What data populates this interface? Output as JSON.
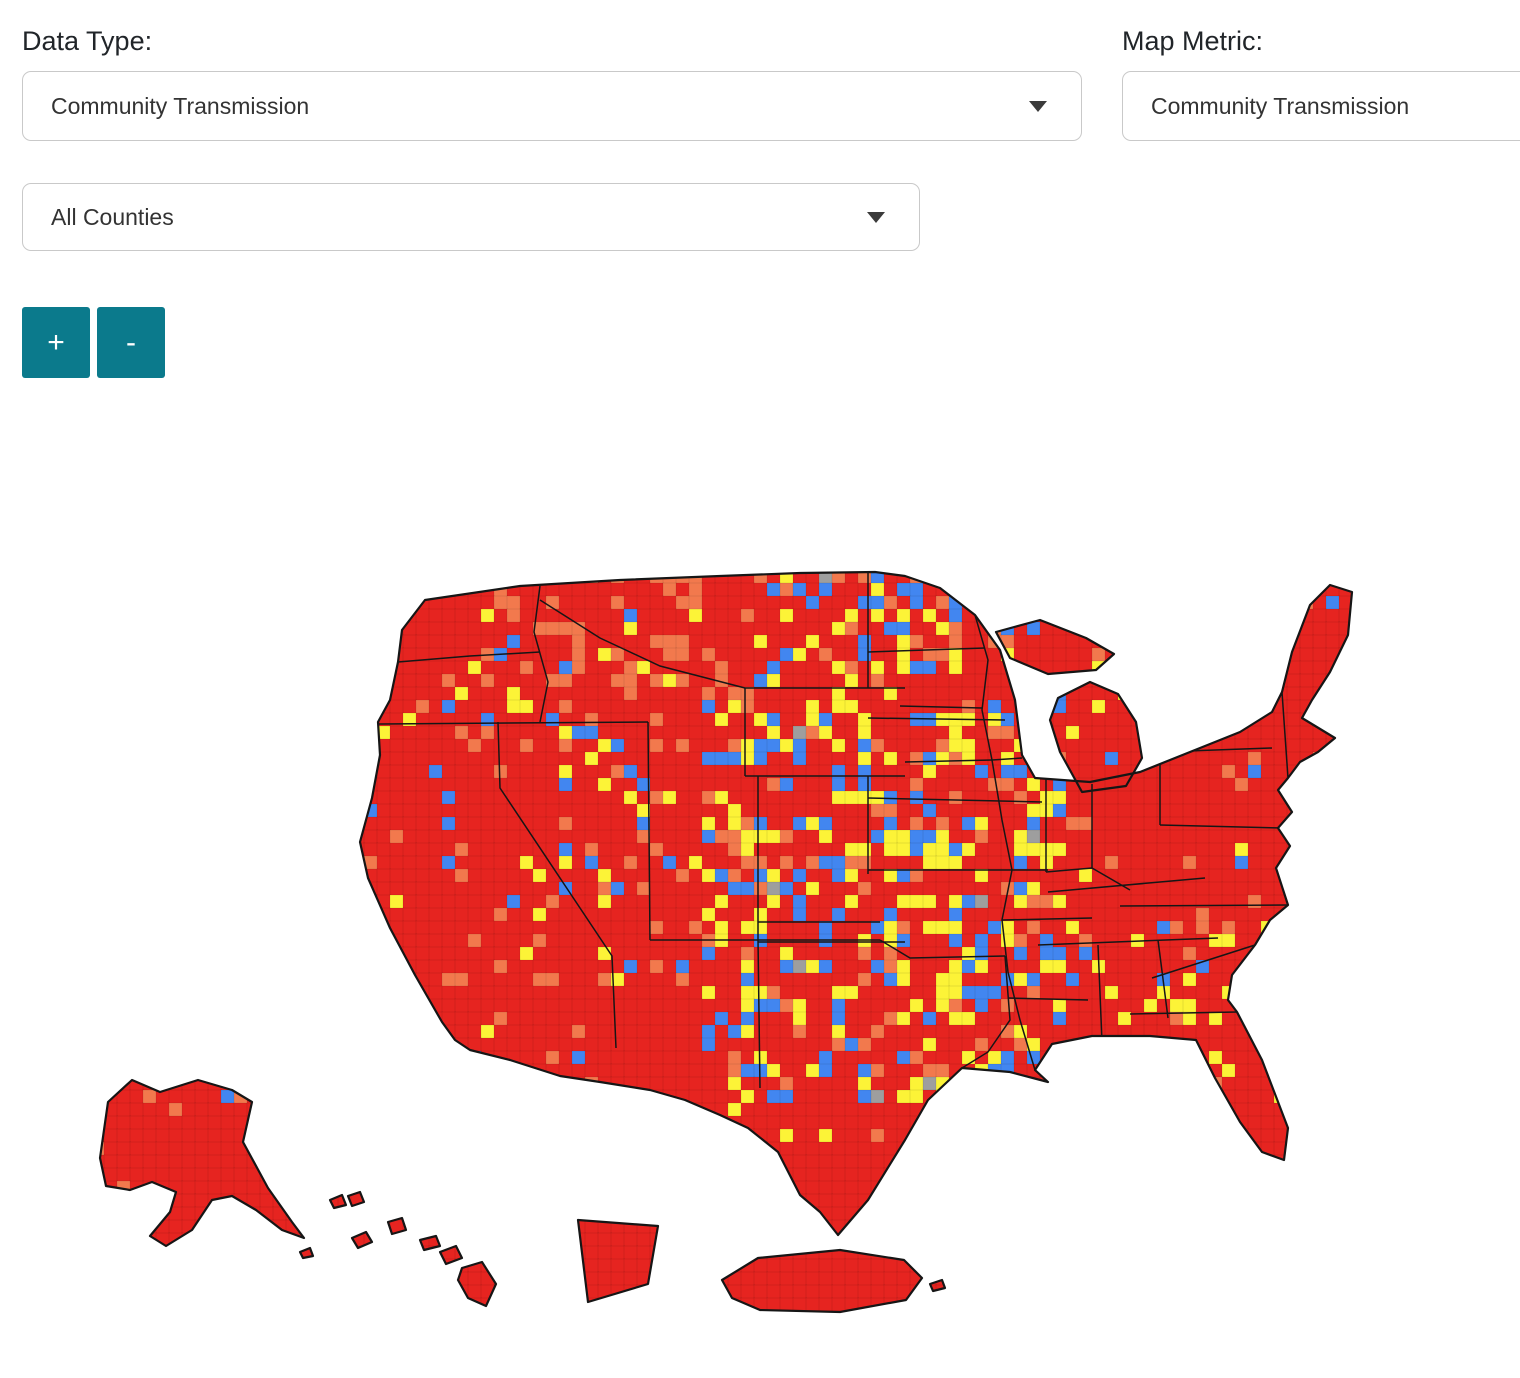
{
  "controls": {
    "data_type_label": "Data Type:",
    "data_type_value": "Community Transmission",
    "map_metric_label": "Map Metric:",
    "map_metric_value": "Community Transmission",
    "county_filter_value": "All Counties",
    "zoom_in_label": "+",
    "zoom_out_label": "-"
  },
  "map": {
    "type": "choropleth",
    "regions": [
      "Continental United States",
      "Alaska",
      "Hawaii",
      "District of Columbia",
      "Puerto Rico"
    ],
    "palette": {
      "red": "#e62420",
      "orange": "#f2794d",
      "yellow": "#fcf337",
      "blue": "#4286f0",
      "gray": "#9e9e9e",
      "outline": "#161616"
    },
    "fill_distribution": {
      "red": 0.74,
      "orange": 0.09,
      "yellow": 0.09,
      "blue": 0.07,
      "gray": 0.01
    }
  },
  "theme": {
    "accent_teal": "#0b7a8c",
    "text": "#212529",
    "select_border": "#c9c9c9"
  }
}
